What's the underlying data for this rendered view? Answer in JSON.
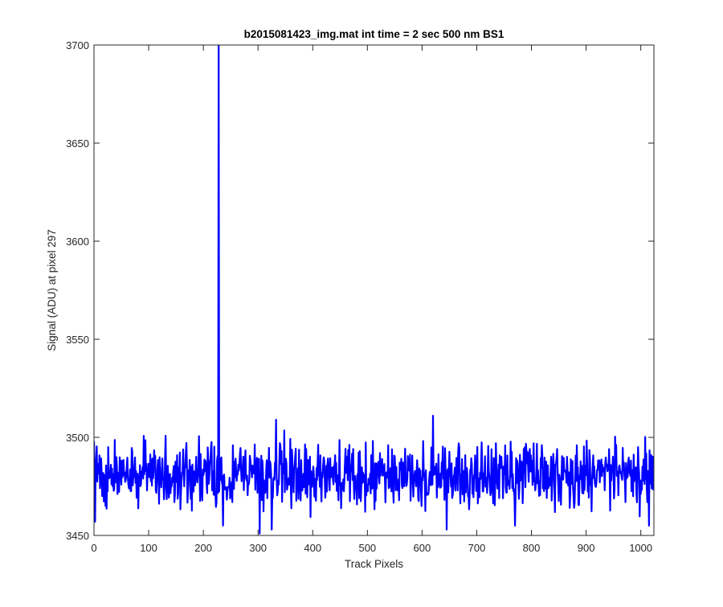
{
  "chart_data": {
    "type": "line",
    "title": "b2015081423_img.mat int time = 2 sec  500 nm BS1",
    "xlabel": "Track Pixels",
    "ylabel": "Signal (ADU) at pixel 297",
    "xlim": [
      0,
      1024
    ],
    "ylim": [
      3450,
      3700
    ],
    "xticks": [
      0,
      100,
      200,
      300,
      400,
      500,
      600,
      700,
      800,
      900,
      1000
    ],
    "yticks": [
      3450,
      3500,
      3550,
      3600,
      3650,
      3700
    ],
    "grid": false,
    "legend": "none",
    "series": [
      {
        "color": "#0000ff",
        "x_start": 0,
        "x_step": 1,
        "baseline_mean": 3481,
        "noise_range": [
          3453,
          3511
        ],
        "spike": {
          "x": 228,
          "y": 3700
        },
        "notable_points": [
          {
            "x": 2,
            "y": 3457
          },
          {
            "x": 228,
            "y": 3700
          },
          {
            "x": 236,
            "y": 3455
          },
          {
            "x": 303,
            "y": 3451
          },
          {
            "x": 325,
            "y": 3453
          },
          {
            "x": 333,
            "y": 3509
          },
          {
            "x": 620,
            "y": 3511
          },
          {
            "x": 645,
            "y": 3453
          },
          {
            "x": 770,
            "y": 3455
          },
          {
            "x": 1015,
            "y": 3455
          },
          {
            "x": 1021,
            "y": 3485
          }
        ]
      }
    ]
  }
}
